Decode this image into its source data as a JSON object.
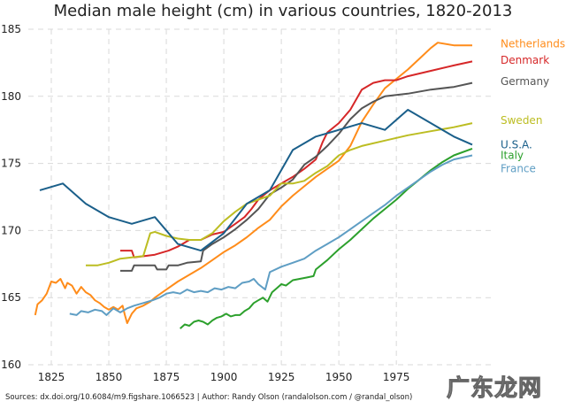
{
  "chart_data": {
    "type": "line",
    "title": "Median male height (cm) in various countries, 1820-2013",
    "xlabel": "",
    "ylabel": "",
    "xlim": [
      1815,
      2018
    ],
    "ylim": [
      160,
      185
    ],
    "x_ticks": [
      1825,
      1850,
      1875,
      1900,
      1925,
      1950,
      1975
    ],
    "y_ticks": [
      160,
      165,
      170,
      175,
      180,
      185
    ],
    "grid": true,
    "legend": "series labels at right end of lines",
    "series": [
      {
        "name": "Netherlands",
        "color": "#ff8c1a",
        "points": [
          [
            1818,
            163.7
          ],
          [
            1819,
            164.5
          ],
          [
            1821,
            164.8
          ],
          [
            1823,
            165.3
          ],
          [
            1825,
            166.2
          ],
          [
            1827,
            166.1
          ],
          [
            1829,
            166.4
          ],
          [
            1831,
            165.7
          ],
          [
            1832,
            166.1
          ],
          [
            1834,
            165.9
          ],
          [
            1836,
            165.3
          ],
          [
            1838,
            165.8
          ],
          [
            1840,
            165.4
          ],
          [
            1842,
            165.2
          ],
          [
            1844,
            164.8
          ],
          [
            1846,
            164.6
          ],
          [
            1848,
            164.3
          ],
          [
            1850,
            164.1
          ],
          [
            1852,
            164.3
          ],
          [
            1854,
            164.1
          ],
          [
            1856,
            164.4
          ],
          [
            1857,
            163.7
          ],
          [
            1858,
            163.1
          ],
          [
            1860,
            163.8
          ],
          [
            1862,
            164.2
          ],
          [
            1865,
            164.4
          ],
          [
            1868,
            164.7
          ],
          [
            1870,
            165.0
          ],
          [
            1875,
            165.6
          ],
          [
            1880,
            166.2
          ],
          [
            1885,
            166.7
          ],
          [
            1890,
            167.2
          ],
          [
            1895,
            167.8
          ],
          [
            1900,
            168.4
          ],
          [
            1905,
            168.9
          ],
          [
            1910,
            169.5
          ],
          [
            1915,
            170.2
          ],
          [
            1920,
            170.8
          ],
          [
            1925,
            171.8
          ],
          [
            1930,
            172.6
          ],
          [
            1935,
            173.3
          ],
          [
            1940,
            174.0
          ],
          [
            1945,
            174.6
          ],
          [
            1950,
            175.2
          ],
          [
            1955,
            176.3
          ],
          [
            1960,
            178.1
          ],
          [
            1965,
            179.4
          ],
          [
            1970,
            180.6
          ],
          [
            1975,
            181.3
          ],
          [
            1980,
            182.0
          ],
          [
            1985,
            182.8
          ],
          [
            1990,
            183.6
          ],
          [
            1993,
            184.0
          ],
          [
            2000,
            183.8
          ],
          [
            2008,
            183.8
          ]
        ]
      },
      {
        "name": "Denmark",
        "color": "#d62728",
        "points": [
          [
            1855,
            168.5
          ],
          [
            1860,
            168.5
          ],
          [
            1861,
            168.0
          ],
          [
            1870,
            168.2
          ],
          [
            1876,
            168.5
          ],
          [
            1880,
            168.8
          ],
          [
            1885,
            169.3
          ],
          [
            1890,
            169.3
          ],
          [
            1895,
            169.7
          ],
          [
            1900,
            169.9
          ],
          [
            1905,
            170.5
          ],
          [
            1909,
            171.0
          ],
          [
            1912,
            171.6
          ],
          [
            1915,
            172.3
          ],
          [
            1920,
            173.0
          ],
          [
            1925,
            173.5
          ],
          [
            1930,
            174.0
          ],
          [
            1935,
            174.6
          ],
          [
            1940,
            175.3
          ],
          [
            1943,
            176.6
          ],
          [
            1945,
            177.3
          ],
          [
            1950,
            178.0
          ],
          [
            1955,
            179.0
          ],
          [
            1960,
            180.5
          ],
          [
            1965,
            181.0
          ],
          [
            1970,
            181.2
          ],
          [
            1975,
            181.2
          ],
          [
            1980,
            181.5
          ],
          [
            1990,
            181.9
          ],
          [
            2000,
            182.3
          ],
          [
            2008,
            182.6
          ]
        ]
      },
      {
        "name": "Germany",
        "color": "#555555",
        "points": [
          [
            1855,
            167.0
          ],
          [
            1860,
            167.0
          ],
          [
            1861,
            167.4
          ],
          [
            1867,
            167.4
          ],
          [
            1870,
            167.4
          ],
          [
            1871,
            167.1
          ],
          [
            1875,
            167.1
          ],
          [
            1876,
            167.4
          ],
          [
            1880,
            167.4
          ],
          [
            1884,
            167.6
          ],
          [
            1890,
            167.7
          ],
          [
            1891,
            168.5
          ],
          [
            1895,
            169.0
          ],
          [
            1900,
            169.5
          ],
          [
            1905,
            170.1
          ],
          [
            1910,
            170.8
          ],
          [
            1915,
            171.6
          ],
          [
            1920,
            172.7
          ],
          [
            1925,
            173.2
          ],
          [
            1930,
            173.8
          ],
          [
            1935,
            174.9
          ],
          [
            1940,
            175.5
          ],
          [
            1945,
            176.3
          ],
          [
            1950,
            177.2
          ],
          [
            1955,
            178.3
          ],
          [
            1960,
            179.1
          ],
          [
            1965,
            179.6
          ],
          [
            1970,
            180.0
          ],
          [
            1975,
            180.1
          ],
          [
            1980,
            180.2
          ],
          [
            1990,
            180.5
          ],
          [
            2000,
            180.7
          ],
          [
            2008,
            181.0
          ]
        ]
      },
      {
        "name": "Sweden",
        "color": "#bcbd22",
        "points": [
          [
            1840,
            167.4
          ],
          [
            1845,
            167.4
          ],
          [
            1850,
            167.6
          ],
          [
            1855,
            167.9
          ],
          [
            1860,
            168.0
          ],
          [
            1865,
            168.1
          ],
          [
            1868,
            169.8
          ],
          [
            1870,
            169.9
          ],
          [
            1875,
            169.6
          ],
          [
            1880,
            169.4
          ],
          [
            1885,
            169.3
          ],
          [
            1890,
            169.3
          ],
          [
            1895,
            169.8
          ],
          [
            1900,
            170.7
          ],
          [
            1905,
            171.4
          ],
          [
            1910,
            172.0
          ],
          [
            1915,
            172.3
          ],
          [
            1920,
            172.6
          ],
          [
            1925,
            173.5
          ],
          [
            1930,
            173.5
          ],
          [
            1935,
            173.7
          ],
          [
            1940,
            174.3
          ],
          [
            1945,
            174.8
          ],
          [
            1950,
            175.6
          ],
          [
            1955,
            176.0
          ],
          [
            1960,
            176.3
          ],
          [
            1970,
            176.7
          ],
          [
            1980,
            177.1
          ],
          [
            1990,
            177.4
          ],
          [
            2000,
            177.7
          ],
          [
            2008,
            178.0
          ]
        ]
      },
      {
        "name": "U.S.A.",
        "color": "#1a5f8a",
        "points": [
          [
            1820,
            173.0
          ],
          [
            1830,
            173.5
          ],
          [
            1840,
            172.0
          ],
          [
            1850,
            171.0
          ],
          [
            1860,
            170.5
          ],
          [
            1870,
            171.0
          ],
          [
            1880,
            169.0
          ],
          [
            1890,
            168.5
          ],
          [
            1900,
            169.8
          ],
          [
            1910,
            172.0
          ],
          [
            1920,
            173.0
          ],
          [
            1930,
            176.0
          ],
          [
            1940,
            177.0
          ],
          [
            1950,
            177.5
          ],
          [
            1960,
            178.0
          ],
          [
            1970,
            177.5
          ],
          [
            1980,
            179.0
          ],
          [
            1990,
            178.0
          ],
          [
            2000,
            177.0
          ],
          [
            2008,
            176.4
          ]
        ]
      },
      {
        "name": "Italy",
        "color": "#2ca02c",
        "points": [
          [
            1881,
            162.7
          ],
          [
            1883,
            163.0
          ],
          [
            1885,
            162.9
          ],
          [
            1887,
            163.2
          ],
          [
            1889,
            163.3
          ],
          [
            1891,
            163.2
          ],
          [
            1893,
            163.0
          ],
          [
            1895,
            163.3
          ],
          [
            1897,
            163.5
          ],
          [
            1899,
            163.6
          ],
          [
            1901,
            163.8
          ],
          [
            1903,
            163.6
          ],
          [
            1905,
            163.7
          ],
          [
            1907,
            163.7
          ],
          [
            1909,
            164.0
          ],
          [
            1911,
            164.2
          ],
          [
            1913,
            164.6
          ],
          [
            1915,
            164.8
          ],
          [
            1917,
            165.0
          ],
          [
            1919,
            164.7
          ],
          [
            1921,
            165.4
          ],
          [
            1923,
            165.7
          ],
          [
            1925,
            166.0
          ],
          [
            1927,
            165.9
          ],
          [
            1930,
            166.3
          ],
          [
            1933,
            166.4
          ],
          [
            1936,
            166.5
          ],
          [
            1939,
            166.6
          ],
          [
            1940,
            167.1
          ],
          [
            1945,
            167.8
          ],
          [
            1950,
            168.6
          ],
          [
            1955,
            169.3
          ],
          [
            1960,
            170.1
          ],
          [
            1965,
            170.9
          ],
          [
            1970,
            171.6
          ],
          [
            1975,
            172.3
          ],
          [
            1980,
            173.1
          ],
          [
            1985,
            173.8
          ],
          [
            1990,
            174.5
          ],
          [
            1995,
            175.1
          ],
          [
            2000,
            175.6
          ],
          [
            2008,
            176.1
          ]
        ]
      },
      {
        "name": "France",
        "color": "#5f9ec4",
        "points": [
          [
            1833,
            163.8
          ],
          [
            1836,
            163.7
          ],
          [
            1838,
            164.0
          ],
          [
            1841,
            163.9
          ],
          [
            1844,
            164.1
          ],
          [
            1847,
            164.0
          ],
          [
            1849,
            163.7
          ],
          [
            1852,
            164.2
          ],
          [
            1855,
            163.9
          ],
          [
            1858,
            164.2
          ],
          [
            1861,
            164.4
          ],
          [
            1865,
            164.6
          ],
          [
            1869,
            164.8
          ],
          [
            1872,
            165.0
          ],
          [
            1875,
            165.3
          ],
          [
            1878,
            165.4
          ],
          [
            1881,
            165.3
          ],
          [
            1884,
            165.6
          ],
          [
            1887,
            165.4
          ],
          [
            1890,
            165.5
          ],
          [
            1893,
            165.4
          ],
          [
            1896,
            165.7
          ],
          [
            1899,
            165.6
          ],
          [
            1902,
            165.8
          ],
          [
            1905,
            165.7
          ],
          [
            1908,
            166.1
          ],
          [
            1911,
            166.2
          ],
          [
            1913,
            166.4
          ],
          [
            1915,
            166.0
          ],
          [
            1918,
            165.6
          ],
          [
            1920,
            166.9
          ],
          [
            1925,
            167.3
          ],
          [
            1930,
            167.6
          ],
          [
            1935,
            167.9
          ],
          [
            1940,
            168.5
          ],
          [
            1945,
            169.0
          ],
          [
            1950,
            169.5
          ],
          [
            1955,
            170.1
          ],
          [
            1960,
            170.7
          ],
          [
            1965,
            171.3
          ],
          [
            1970,
            171.9
          ],
          [
            1975,
            172.6
          ],
          [
            1980,
            173.2
          ],
          [
            1985,
            173.8
          ],
          [
            1990,
            174.4
          ],
          [
            1995,
            174.9
          ],
          [
            2000,
            175.3
          ],
          [
            2008,
            175.6
          ]
        ]
      }
    ],
    "labels": [
      {
        "text": "Netherlands",
        "series": 0,
        "y": 183.9,
        "color": "#ff8c1a"
      },
      {
        "text": "Denmark",
        "series": 1,
        "y": 182.7,
        "color": "#d62728"
      },
      {
        "text": "Germany",
        "series": 2,
        "y": 181.1,
        "color": "#555555"
      },
      {
        "text": "Sweden",
        "series": 3,
        "y": 178.2,
        "color": "#bcbd22"
      },
      {
        "text": "U.S.A.",
        "series": 4,
        "y": 176.4,
        "color": "#1a5f8a"
      },
      {
        "text": "Italy",
        "series": 5,
        "y": 175.6,
        "color": "#2ca02c"
      },
      {
        "text": "France",
        "series": 6,
        "y": 174.6,
        "color": "#5f9ec4"
      }
    ]
  },
  "source": "Sources: dx.doi.org/10.6084/m9.figshare.1066523 | Author: Randy Olson (randalolson.com / @randal_olson)",
  "watermark": "广东龙网"
}
